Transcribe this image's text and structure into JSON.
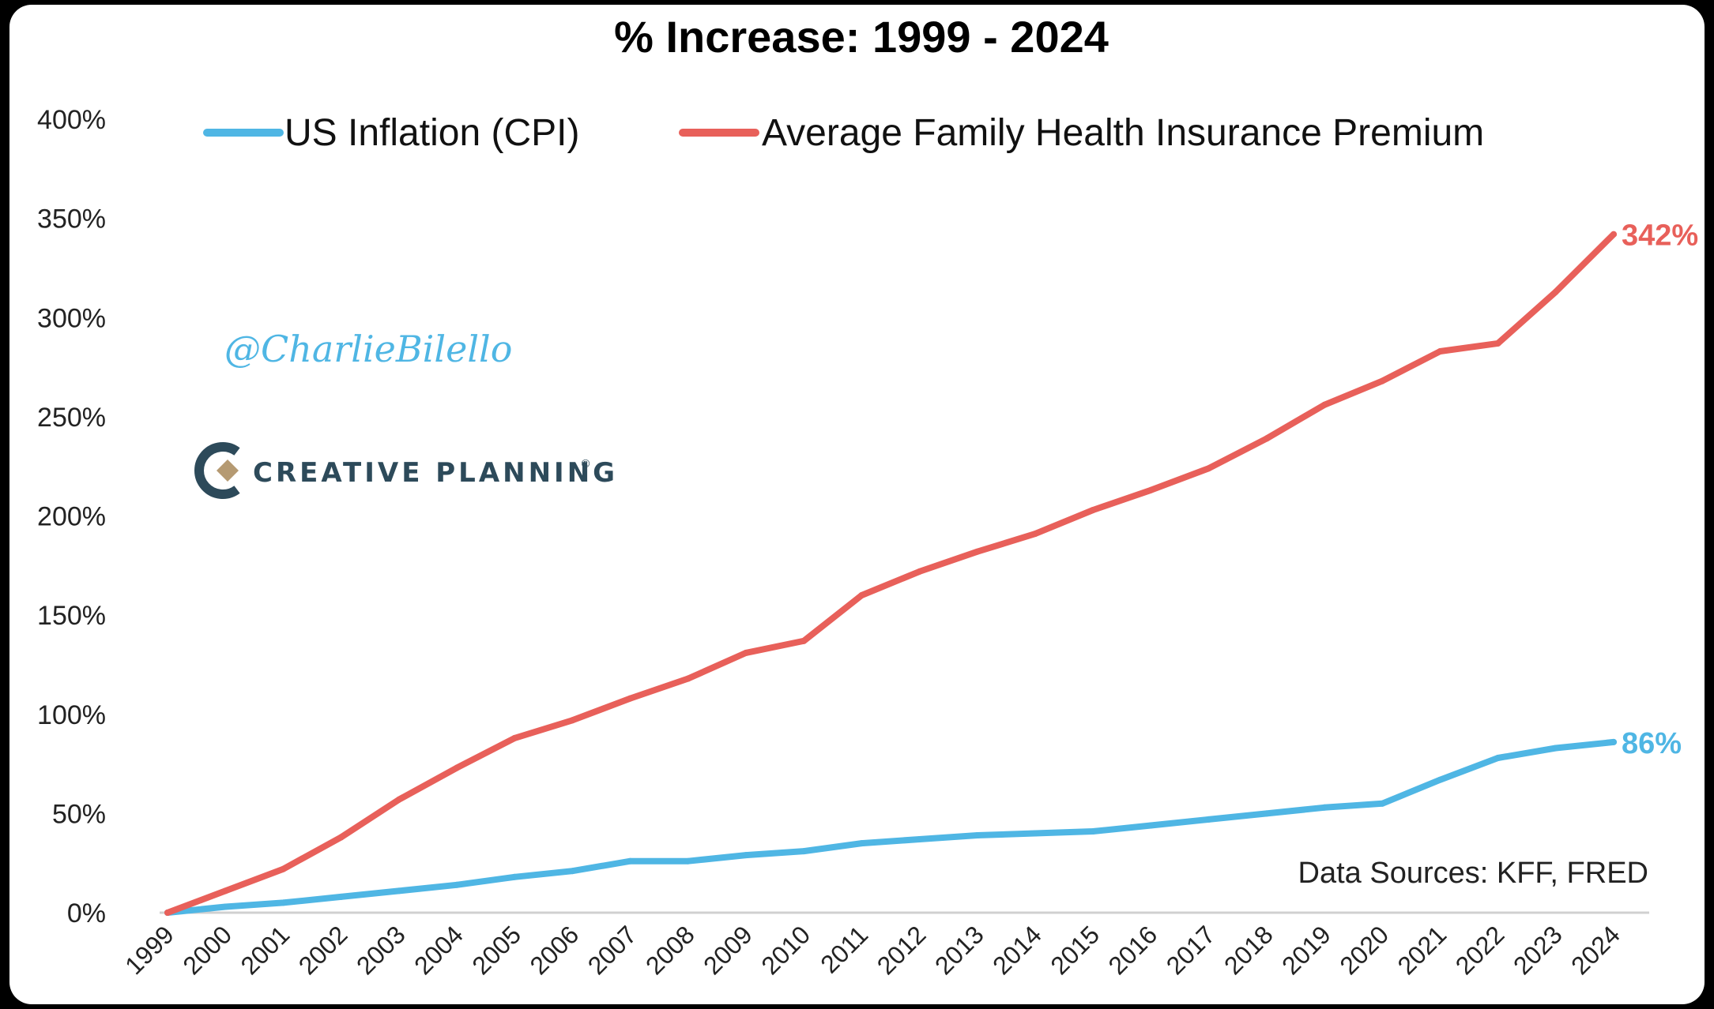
{
  "watermark": {
    "handle": "@CharlieBilello",
    "logo_text": "CREATIVE PLANNING",
    "logo_registered": "®"
  },
  "chart_data": {
    "type": "line",
    "title": "% Increase: 1999 - 2024",
    "xlabel": "",
    "ylabel": "",
    "x": [
      "1999",
      "2000",
      "2001",
      "2002",
      "2003",
      "2004",
      "2005",
      "2006",
      "2007",
      "2008",
      "2009",
      "2010",
      "2011",
      "2012",
      "2013",
      "2014",
      "2015",
      "2016",
      "2017",
      "2018",
      "2019",
      "2020",
      "2021",
      "2022",
      "2023",
      "2024"
    ],
    "ylim": [
      0,
      400
    ],
    "yticks": [
      0,
      50,
      100,
      150,
      200,
      250,
      300,
      350,
      400
    ],
    "ytick_labels": [
      "0%",
      "50%",
      "100%",
      "150%",
      "200%",
      "250%",
      "300%",
      "350%",
      "400%"
    ],
    "y_grid": false,
    "legend_position": "top",
    "series": [
      {
        "name": "US Inflation (CPI)",
        "color": "#4fb6e4",
        "end_label": "86%",
        "values": [
          0,
          3,
          5,
          8,
          11,
          14,
          18,
          21,
          26,
          26,
          29,
          31,
          35,
          37,
          39,
          40,
          41,
          44,
          47,
          50,
          53,
          55,
          67,
          78,
          83,
          86
        ]
      },
      {
        "name": "Average Family Health Insurance Premium",
        "color": "#e8605a",
        "end_label": "342%",
        "values": [
          0,
          11,
          22,
          38,
          57,
          73,
          88,
          97,
          108,
          118,
          131,
          137,
          160,
          172,
          182,
          191,
          203,
          213,
          224,
          239,
          256,
          268,
          283,
          287,
          313,
          342
        ]
      }
    ],
    "annotations": {
      "source": "Data Sources: KFF, FRED"
    }
  }
}
